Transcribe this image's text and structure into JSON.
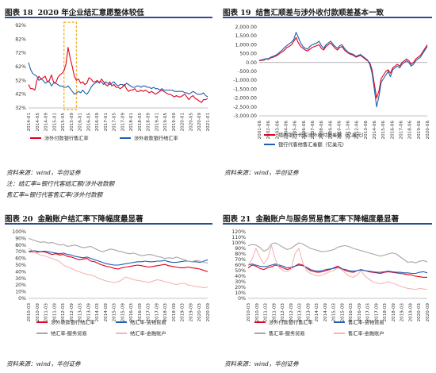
{
  "charts": [
    {
      "figure_label": "图表 18",
      "title": "2020 年企业结汇意愿整体较低",
      "source": "资料来源：wind，华创证券"
    },
    {
      "figure_label": "图表 19",
      "title": "结售汇顺差与涉外收付款顺差基本一致",
      "source": "资料来源：wind，华创证券"
    },
    {
      "figure_label": "图表 20",
      "title": "金融账户结汇率下降幅度最显著",
      "source": "资料来源：wind，华创证券"
    },
    {
      "figure_label": "图表 21",
      "title": "金融账户与服务贸易售汇率下降幅度最显著",
      "source": "资料来源：wind，华创证券"
    }
  ],
  "notes": {
    "line1": "注：结汇率=银行代客结汇额/涉外收款额",
    "line2": "售汇率=银行代客售汇率/涉外付款额"
  },
  "colors": {
    "red": "#e3001b",
    "blue": "#1f5fb0",
    "gray": "#a6a6a6",
    "pink": "#f2b7b5",
    "title_rule": "#2c4f8c",
    "highlight": "#f2b42c"
  },
  "chart_data": [
    {
      "type": "line",
      "ylim": [
        32,
        92
      ],
      "yticks": [
        "92%",
        "82%",
        "72%",
        "62%",
        "52%",
        "42%",
        "32%"
      ],
      "ytick_values": [
        92,
        82,
        72,
        62,
        52,
        42,
        32
      ],
      "xticks": [
        "2014-01",
        "2014-05",
        "2014-09",
        "2015-01",
        "2015-05",
        "2015-09",
        "2016-01",
        "2016-05",
        "2016-09",
        "2017-01",
        "2017-05",
        "2017-09",
        "2018-01",
        "2018-05",
        "2018-09",
        "2019-01",
        "2019-05",
        "2019-09",
        "2020-01",
        "2020-05",
        "2020-09",
        "2021-01"
      ],
      "highlight_range": [
        17,
        23
      ],
      "series": [
        {
          "name": "涉外付款银行售汇率",
          "color": "#e3001b",
          "values": [
            49,
            46,
            46,
            45,
            52,
            55,
            53,
            54,
            55,
            51,
            52,
            56,
            51,
            50,
            54,
            56,
            57,
            59,
            64,
            76,
            68,
            62,
            55,
            52,
            53,
            50,
            51,
            49,
            50,
            54,
            53,
            51,
            51,
            52,
            50,
            53,
            51,
            49,
            48,
            51,
            48,
            49,
            47,
            47,
            46,
            47,
            49,
            46,
            44,
            45,
            45,
            46,
            44,
            44,
            45,
            44,
            45,
            44,
            43,
            44,
            43,
            42,
            43,
            44,
            45,
            44,
            43,
            42,
            42,
            41,
            40,
            41,
            40,
            40,
            41,
            42,
            40,
            38,
            40,
            41,
            39,
            38,
            37,
            36,
            38,
            38,
            39
          ]
        },
        {
          "name": "涉外收款银行结汇率",
          "color": "#1f5fb0",
          "values": [
            65,
            60,
            57,
            56,
            55,
            52,
            53,
            52,
            50,
            51,
            51,
            48,
            50,
            50,
            49,
            48,
            48,
            47,
            47,
            48,
            46,
            44,
            42,
            43,
            44,
            43,
            45,
            43,
            42,
            44,
            47,
            49,
            50,
            51,
            51,
            51,
            49,
            51,
            50,
            49,
            50,
            51,
            49,
            48,
            49,
            49,
            48,
            50,
            49,
            48,
            47,
            47,
            48,
            48,
            47,
            48,
            48,
            47,
            47,
            46,
            47,
            46,
            46,
            45,
            46,
            45,
            45,
            45,
            45,
            45,
            44,
            44,
            44,
            44,
            44,
            43,
            43,
            42,
            43,
            44,
            43,
            42,
            42,
            42,
            43,
            41,
            40
          ]
        }
      ]
    },
    {
      "type": "line",
      "ylim": [
        -3000,
        2000
      ],
      "yticks": [
        "2,000.00",
        "1,500.00",
        "1,000.00",
        "500.00",
        "0.00",
        "-500.00",
        "-1,000.00",
        "-1,500.00",
        "-2,000.00",
        "-2,500.00",
        "-3,000.00"
      ],
      "ytick_values": [
        2000,
        1500,
        1000,
        500,
        0,
        -500,
        -1000,
        -1500,
        -2000,
        -2500,
        -3000
      ],
      "xticks": [
        "2001-06",
        "2002-06",
        "2003-06",
        "2004-06",
        "2005-06",
        "2006-06",
        "2007-06",
        "2008-06",
        "2009-06",
        "2010-06",
        "2011-06",
        "2012-06",
        "2013-06",
        "2014-06",
        "2015-06",
        "2016-06",
        "2017-06",
        "2018-06",
        "2019-06",
        "2020-06"
      ],
      "series": [
        {
          "name": "境内银行代客涉外收付款差额（亿美元）",
          "color": "#e3001b",
          "values": [
            100,
            120,
            140,
            200,
            180,
            260,
            300,
            350,
            420,
            520,
            600,
            700,
            850,
            900,
            1000,
            1200,
            1400,
            1100,
            900,
            800,
            700,
            650,
            750,
            850,
            900,
            950,
            1000,
            800,
            700,
            900,
            1000,
            1100,
            950,
            800,
            700,
            850,
            900,
            700,
            600,
            500,
            450,
            400,
            300,
            350,
            400,
            300,
            200,
            100,
            0,
            -400,
            -1200,
            -2000,
            -1600,
            -900,
            -700,
            -500,
            -400,
            -600,
            -300,
            -200,
            -100,
            -200,
            0,
            100,
            200,
            100,
            -100,
            0,
            200,
            300,
            400,
            600,
            800,
            1000
          ]
        },
        {
          "name": "银行代客结售汇差额（亿美元）",
          "color": "#1f5fb0",
          "values": [
            120,
            150,
            180,
            220,
            210,
            300,
            350,
            400,
            480,
            600,
            700,
            850,
            950,
            1050,
            1150,
            1300,
            1700,
            1400,
            1100,
            900,
            800,
            750,
            900,
            1000,
            1050,
            1100,
            1200,
            950,
            800,
            1000,
            1100,
            1200,
            1050,
            900,
            800,
            950,
            1000,
            800,
            650,
            550,
            500,
            450,
            350,
            400,
            450,
            350,
            250,
            150,
            -100,
            -600,
            -1500,
            -2500,
            -1900,
            -1100,
            -900,
            -700,
            -500,
            -800,
            -400,
            -300,
            -200,
            -300,
            -100,
            0,
            100,
            0,
            -200,
            -100,
            100,
            200,
            300,
            500,
            700,
            900
          ]
        }
      ]
    },
    {
      "type": "line",
      "ylim": [
        0,
        100
      ],
      "yticks": [
        "100%",
        "90%",
        "80%",
        "70%",
        "60%",
        "50%",
        "40%",
        "30%",
        "20%",
        "10%",
        "0%"
      ],
      "ytick_values": [
        100,
        90,
        80,
        70,
        60,
        50,
        40,
        30,
        20,
        10,
        0
      ],
      "xticks": [
        "2010-03",
        "2010-09",
        "2011-03",
        "2011-09",
        "2012-03",
        "2012-09",
        "2013-03",
        "2013-09",
        "2014-03",
        "2014-09",
        "2015-03",
        "2015-09",
        "2016-03",
        "2016-09",
        "2017-03",
        "2017-09",
        "2018-03",
        "2018-09",
        "2019-03",
        "2019-09",
        "2020-03",
        "2020-09"
      ],
      "series": [
        {
          "name": "涉外收款银行结汇率",
          "color": "#e3001b",
          "values": [
            70,
            70,
            69,
            70,
            70,
            68,
            66,
            67,
            65,
            66,
            63,
            62,
            60,
            58,
            59,
            60,
            56,
            55,
            52,
            50,
            48,
            47,
            45,
            44,
            46,
            47,
            48,
            49,
            50,
            49,
            48,
            47,
            48,
            49,
            50,
            51,
            49,
            48,
            47,
            46,
            46,
            47,
            46,
            45,
            44,
            42,
            40
          ]
        },
        {
          "name": "结汇率-货物贸易",
          "color": "#1f5fb0",
          "values": [
            70,
            72,
            71,
            70,
            71,
            70,
            69,
            68,
            67,
            68,
            66,
            65,
            63,
            62,
            61,
            62,
            60,
            58,
            56,
            54,
            52,
            51,
            50,
            50,
            51,
            52,
            53,
            54,
            55,
            55,
            56,
            55,
            55,
            56,
            56,
            57,
            55,
            54,
            54,
            55,
            56,
            56,
            55,
            55,
            54,
            56,
            58
          ]
        },
        {
          "name": "结汇率-服务贸易",
          "color": "#a6a6a6",
          "values": [
            90,
            88,
            86,
            84,
            85,
            83,
            84,
            82,
            80,
            81,
            78,
            79,
            80,
            78,
            76,
            77,
            78,
            75,
            72,
            70,
            72,
            74,
            73,
            71,
            70,
            68,
            67,
            68,
            66,
            64,
            65,
            66,
            65,
            63,
            62,
            60,
            61,
            60,
            62,
            60,
            58,
            56,
            55,
            57,
            56,
            54,
            53
          ]
        },
        {
          "name": "结汇率-金融账户",
          "color": "#f2b7b5",
          "values": [
            75,
            72,
            68,
            65,
            64,
            62,
            60,
            58,
            55,
            50,
            47,
            45,
            42,
            40,
            38,
            36,
            35,
            33,
            30,
            28,
            26,
            25,
            24,
            25,
            28,
            32,
            30,
            28,
            27,
            26,
            25,
            24,
            26,
            28,
            27,
            25,
            24,
            22,
            21,
            22,
            23,
            20,
            19,
            18,
            17,
            16,
            17
          ]
        }
      ]
    },
    {
      "type": "line",
      "ylim": [
        0,
        120
      ],
      "yticks": [
        "120%",
        "110%",
        "100%",
        "90%",
        "80%",
        "70%",
        "60%",
        "50%",
        "40%",
        "30%",
        "20%",
        "10%",
        "0%"
      ],
      "ytick_values": [
        120,
        110,
        100,
        90,
        80,
        70,
        60,
        50,
        40,
        30,
        20,
        10,
        0
      ],
      "xticks": [
        "2010-03",
        "2010-09",
        "2011-03",
        "2011-09",
        "2012-03",
        "2012-09",
        "2013-03",
        "2013-09",
        "2014-03",
        "2014-09",
        "2015-03",
        "2015-09",
        "2016-03",
        "2016-09",
        "2017-03",
        "2017-09",
        "2018-03",
        "2018-09",
        "2019-03",
        "2019-09",
        "2020-03",
        "2020-09"
      ],
      "series": [
        {
          "name": "涉外付款银行售汇率",
          "color": "#e3001b",
          "values": [
            55,
            60,
            58,
            54,
            52,
            55,
            57,
            60,
            58,
            55,
            52,
            54,
            58,
            62,
            60,
            55,
            50,
            48,
            47,
            48,
            50,
            52,
            55,
            58,
            54,
            50,
            48,
            47,
            50,
            52,
            50,
            48,
            47,
            46,
            45,
            47,
            48,
            47,
            46,
            45,
            44,
            43,
            42,
            40,
            39,
            38,
            38
          ]
        },
        {
          "name": "售汇率-货物贸易",
          "color": "#1f5fb0",
          "values": [
            60,
            62,
            60,
            58,
            57,
            58,
            60,
            62,
            60,
            58,
            55,
            56,
            58,
            60,
            59,
            56,
            52,
            50,
            49,
            50,
            52,
            53,
            54,
            56,
            53,
            52,
            50,
            49,
            50,
            51,
            50,
            49,
            48,
            47,
            47,
            48,
            49,
            48,
            47,
            47,
            46,
            46,
            45,
            45,
            47,
            48,
            46
          ]
        },
        {
          "name": "售汇率-服务贸易",
          "color": "#a6a6a6",
          "values": [
            95,
            97,
            96,
            92,
            85,
            88,
            98,
            100,
            96,
            92,
            88,
            90,
            95,
            100,
            98,
            94,
            90,
            88,
            86,
            84,
            85,
            86,
            88,
            92,
            94,
            95,
            93,
            90,
            88,
            86,
            84,
            82,
            80,
            78,
            76,
            78,
            80,
            82,
            80,
            75,
            70,
            65,
            66,
            64,
            67,
            68,
            66
          ]
        },
        {
          "name": "售汇率-金融账户",
          "color": "#f2b7b5",
          "values": [
            60,
            70,
            90,
            75,
            62,
            72,
            95,
            70,
            55,
            50,
            48,
            52,
            80,
            90,
            65,
            50,
            45,
            42,
            40,
            42,
            45,
            48,
            50,
            55,
            52,
            45,
            40,
            38,
            42,
            50,
            40,
            35,
            30,
            28,
            26,
            28,
            30,
            28,
            25,
            22,
            20,
            18,
            17,
            16,
            18,
            17,
            16
          ]
        }
      ]
    }
  ]
}
